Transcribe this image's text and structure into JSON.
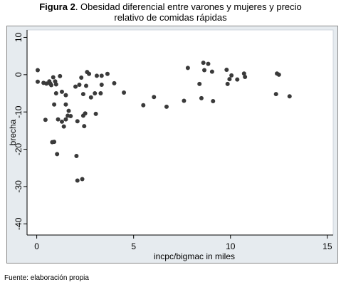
{
  "figure": {
    "lead": "Figura 2",
    "title": ". Obesidad diferencial entre varones y mujeres y precio",
    "title_line2": "relativo de comidas rápidas",
    "source": "Fuente: elaboración propia"
  },
  "colors": {
    "frame_background": "#e6ebef",
    "plot_background": "#ffffff",
    "point_color": "#3a3a3a",
    "text": "#000000"
  },
  "chart_data": {
    "type": "scatter",
    "xlabel": "incpc/bigmac in miles",
    "ylabel": "brecha",
    "xlim": [
      -0.5,
      15.3
    ],
    "ylim": [
      -43,
      12
    ],
    "xticks": [
      0,
      5,
      10,
      15
    ],
    "yticks": [
      10,
      0,
      -10,
      -20,
      -30,
      -40
    ],
    "grid": false,
    "legend": "none",
    "points": [
      [
        0.05,
        1.2
      ],
      [
        0.05,
        -1.9
      ],
      [
        0.35,
        -2.2
      ],
      [
        0.45,
        -12.1
      ],
      [
        0.5,
        -2.4
      ],
      [
        0.65,
        -1.8
      ],
      [
        0.7,
        -2.4
      ],
      [
        0.75,
        -2.8
      ],
      [
        0.8,
        -18.1
      ],
      [
        0.85,
        -0.7
      ],
      [
        0.9,
        -18.0
      ],
      [
        0.9,
        -8.0
      ],
      [
        0.95,
        -1.8
      ],
      [
        1.0,
        -2.6
      ],
      [
        1.0,
        -5.0
      ],
      [
        1.05,
        -21.3
      ],
      [
        1.1,
        -12.0
      ],
      [
        1.2,
        -0.4
      ],
      [
        1.3,
        -4.6
      ],
      [
        1.3,
        -12.6
      ],
      [
        1.4,
        -13.9
      ],
      [
        1.5,
        -5.5
      ],
      [
        1.5,
        -8.0
      ],
      [
        1.5,
        -12.0
      ],
      [
        1.6,
        -11.0
      ],
      [
        1.65,
        -9.7
      ],
      [
        1.75,
        -11.1
      ],
      [
        2.0,
        -3.2
      ],
      [
        2.05,
        -21.8
      ],
      [
        2.1,
        -28.4
      ],
      [
        2.1,
        -12.5
      ],
      [
        2.2,
        -2.7
      ],
      [
        2.3,
        -0.8
      ],
      [
        2.35,
        -28.0
      ],
      [
        2.4,
        -5.2
      ],
      [
        2.4,
        -11.0
      ],
      [
        2.45,
        -13.8
      ],
      [
        2.5,
        -10.4
      ],
      [
        2.55,
        -3.0
      ],
      [
        2.6,
        0.7
      ],
      [
        2.7,
        0.2
      ],
      [
        2.8,
        -6.1
      ],
      [
        3.0,
        -5.0
      ],
      [
        3.05,
        -10.5
      ],
      [
        3.1,
        -0.3
      ],
      [
        3.3,
        -5.0
      ],
      [
        3.35,
        -0.3
      ],
      [
        3.35,
        -2.7
      ],
      [
        3.65,
        0.2
      ],
      [
        4.0,
        -2.3
      ],
      [
        4.5,
        -4.8
      ],
      [
        5.5,
        -8.2
      ],
      [
        6.05,
        -6.0
      ],
      [
        6.7,
        -8.6
      ],
      [
        7.6,
        -7.0
      ],
      [
        7.8,
        1.8
      ],
      [
        8.4,
        -2.5
      ],
      [
        8.5,
        -6.3
      ],
      [
        8.6,
        3.2
      ],
      [
        8.65,
        1.2
      ],
      [
        8.85,
        2.9
      ],
      [
        9.05,
        0.8
      ],
      [
        9.1,
        -7.1
      ],
      [
        9.8,
        1.3
      ],
      [
        9.85,
        -2.5
      ],
      [
        9.95,
        -1.2
      ],
      [
        10.05,
        -0.2
      ],
      [
        10.35,
        -1.3
      ],
      [
        10.7,
        0.3
      ],
      [
        10.75,
        -0.6
      ],
      [
        12.35,
        -5.2
      ],
      [
        12.4,
        0.3
      ],
      [
        12.5,
        0.0
      ],
      [
        13.05,
        -5.8
      ]
    ]
  }
}
